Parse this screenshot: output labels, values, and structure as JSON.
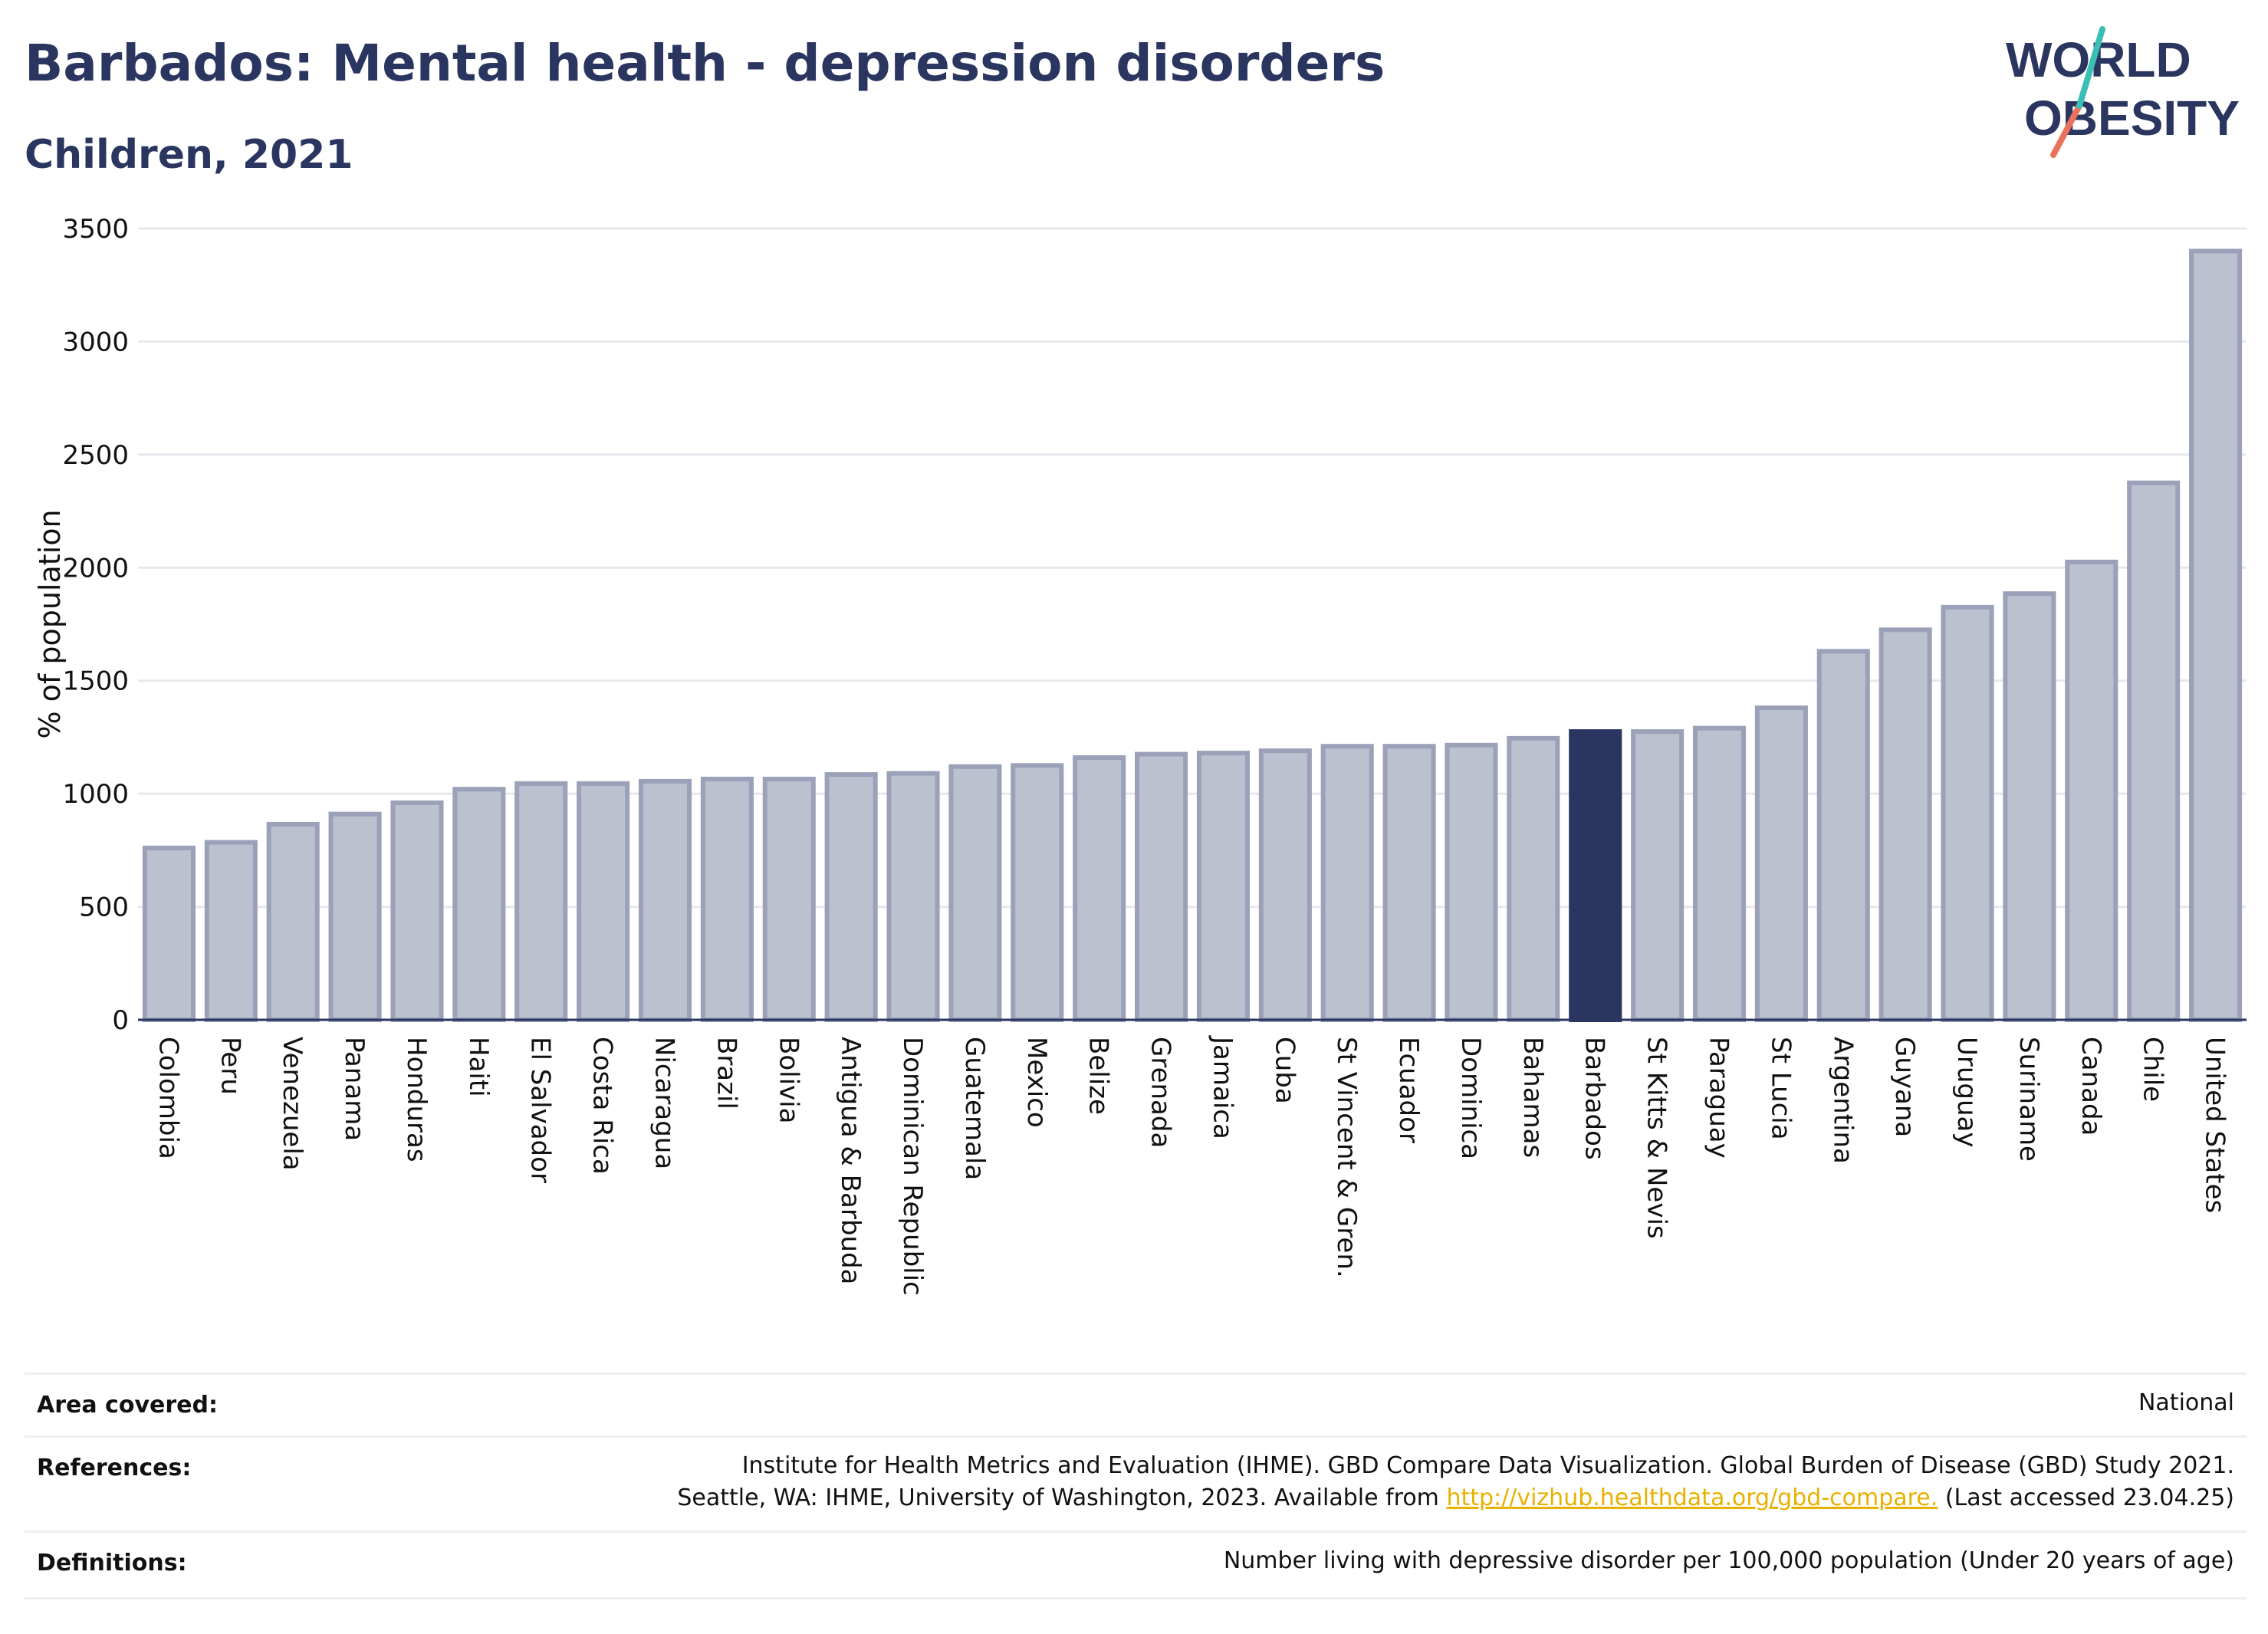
{
  "header": {
    "title": "Barbados: Mental health - depression disorders",
    "subtitle": "Children, 2021"
  },
  "logo": {
    "line1": "WORLD",
    "line2": "OBESITY"
  },
  "colors": {
    "bar": "#bcc1cf",
    "bar_stroke": "#9aa1b8",
    "highlight": "#2a3560",
    "text": "#2a3560",
    "grid": "#e6e8ee"
  },
  "chart_data": {
    "type": "bar",
    "ylabel": "% of population",
    "ylim": [
      0,
      3500
    ],
    "yticks": [
      0,
      500,
      1000,
      1500,
      2000,
      2500,
      3000,
      3500
    ],
    "grid": true,
    "highlight": "Barbados",
    "categories": [
      "Colombia",
      "Peru",
      "Venezuela",
      "Panama",
      "Honduras",
      "Haiti",
      "El Salvador",
      "Costa Rica",
      "Nicaragua",
      "Brazil",
      "Bolivia",
      "Antigua & Barbuda",
      "Dominican Republic",
      "Guatemala",
      "Mexico",
      "Belize",
      "Grenada",
      "Jamaica",
      "Cuba",
      "St Vincent & Gren.",
      "Ecuador",
      "Dominica",
      "Bahamas",
      "Barbados",
      "St Kitts & Nevis",
      "Paraguay",
      "St Lucia",
      "Argentina",
      "Guyana",
      "Uruguay",
      "Suriname",
      "Canada",
      "Chile",
      "United States"
    ],
    "values": [
      760,
      785,
      865,
      910,
      960,
      1020,
      1045,
      1045,
      1055,
      1065,
      1065,
      1085,
      1090,
      1120,
      1125,
      1160,
      1175,
      1180,
      1190,
      1210,
      1210,
      1215,
      1245,
      1275,
      1275,
      1290,
      1380,
      1630,
      1725,
      1825,
      1885,
      2025,
      2375,
      3400
    ]
  },
  "footer": {
    "area_label": "Area covered:",
    "area_value": "National",
    "references_label": "References:",
    "references_line1": "Institute for Health Metrics and Evaluation (IHME). GBD Compare Data Visualization. Global Burden of Disease (GBD) Study 2021.",
    "references_line2_pre": "Seattle, WA: IHME, University of Washington, 2023. Available from ",
    "references_link": "http://vizhub.healthdata.org/gbd-compare.",
    "references_line2_post": " (Last accessed 23.04.25)",
    "definitions_label": "Definitions:",
    "definitions_value": "Number living with depressive disorder per 100,000 population (Under 20 years of age)"
  }
}
